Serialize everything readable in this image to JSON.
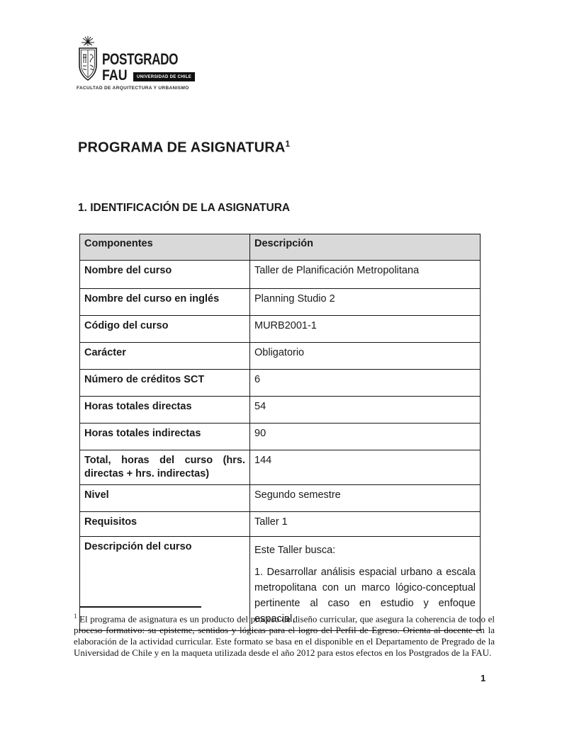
{
  "colors": {
    "table_header_bg": "#d9d9d9",
    "border": "#161616",
    "badge_bg": "#111111"
  },
  "logo": {
    "line1": "POSTGRADO",
    "line2": "FAU",
    "badge": "UNIVERSIDAD DE CHILE",
    "faculty": "FACULTAD DE ARQUITECTURA Y URBANISMO"
  },
  "document": {
    "title": "PROGRAMA DE ASIGNATURA",
    "title_footnote_ref": "1",
    "section_heading": "1. IDENTIFICACIÓN DE LA ASIGNATURA",
    "page_number": "1"
  },
  "table": {
    "headers": [
      "Componentes",
      "Descripción"
    ],
    "rows": [
      {
        "label": "Nombre del curso",
        "value_paragraphs": [
          "Taller de Planificación Metropolitana"
        ]
      },
      {
        "label": "Nombre del curso en inglés",
        "value_paragraphs": [
          "Planning Studio 2"
        ]
      },
      {
        "label": "Código del curso",
        "value_paragraphs": [
          "MURB2001-1"
        ]
      },
      {
        "label": "Carácter",
        "value_paragraphs": [
          "Obligatorio"
        ]
      },
      {
        "label": "Número de créditos SCT",
        "value_paragraphs": [
          "6"
        ]
      },
      {
        "label": "Horas totales directas",
        "value_paragraphs": [
          "54"
        ]
      },
      {
        "label": "Horas totales indirectas",
        "value_paragraphs": [
          "90"
        ]
      },
      {
        "label": "Total, horas del curso (hrs. directas + hrs. indirectas)",
        "value_paragraphs": [
          "144"
        ]
      },
      {
        "label": "Nivel",
        "value_paragraphs": [
          "Segundo semestre"
        ]
      },
      {
        "label": "Requisitos",
        "value_paragraphs": [
          "Taller 1"
        ]
      },
      {
        "label": "Descripción del curso",
        "value_paragraphs": [
          "Este Taller busca:",
          "1. Desarrollar análisis espacial urbano a escala metropolitana con un marco lógico-conceptual pertinente al caso en estudio y enfoque espacial,"
        ]
      }
    ]
  },
  "footnote": {
    "marker": "1",
    "text": "El programa de asignatura es un producto del proceso de diseño curricular, que asegura la coherencia de todo el proceso formativo: su episteme, sentidos y lógicas para el logro del Perfil de Egreso. Orienta al docente en la elaboración de la actividad curricular. Este formato se basa en el disponible en el Departamento de Pregrado de la Universidad de Chile y en la maqueta utilizada desde el año 2012 para estos efectos en los Postgrados de la FAU."
  }
}
